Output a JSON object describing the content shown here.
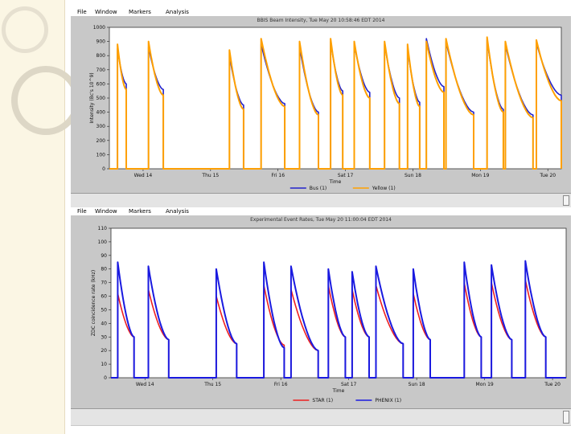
{
  "menu": [
    "File",
    "Window",
    "Markers",
    "Analysis"
  ],
  "chart_data": [
    {
      "type": "line",
      "title": "BBIS Beam Intensity, Tue May 20 10:58:46 EDT 2014",
      "xlabel": "Time",
      "ylabel": "Intensity (Bc's 10^9)",
      "categories": [
        "Wed 14",
        "Thu 15",
        "Fri 16",
        "Sat 17",
        "Sun 18",
        "Mon 19",
        "Tue 20"
      ],
      "xlim": [
        0,
        6.7
      ],
      "ylim": [
        0,
        1000
      ],
      "yticks": [
        0,
        100,
        200,
        300,
        400,
        500,
        600,
        700,
        800,
        900,
        1000
      ],
      "yticklabels": [
        "0",
        "100",
        "200",
        "300",
        "400",
        "500",
        "600",
        "700",
        "800",
        "900",
        "1000"
      ],
      "series": [
        {
          "name": "Bus (1)",
          "color": "#2222cc",
          "fills": [
            [
              0.12,
              0.25,
              850,
              600
            ],
            [
              0.58,
              0.8,
              860,
              560
            ],
            [
              1.78,
              1.99,
              800,
              450
            ],
            [
              2.25,
              2.6,
              880,
              460
            ],
            [
              2.82,
              3.1,
              860,
              400
            ],
            [
              3.28,
              3.46,
              900,
              550
            ],
            [
              3.63,
              3.86,
              880,
              540
            ],
            [
              4.08,
              4.3,
              880,
              500
            ],
            [
              4.42,
              4.6,
              850,
              470
            ],
            [
              4.7,
              4.96,
              920,
              580
            ],
            [
              4.99,
              5.4,
              900,
              400
            ],
            [
              5.6,
              5.84,
              910,
              420
            ],
            [
              5.87,
              6.28,
              880,
              380
            ],
            [
              6.33,
              6.7,
              890,
              520
            ]
          ]
        },
        {
          "name": "Yellow (1)",
          "color": "#ffa000",
          "fills": [
            [
              0.12,
              0.25,
              880,
              560
            ],
            [
              0.58,
              0.8,
              900,
              520
            ],
            [
              1.78,
              1.99,
              840,
              420
            ],
            [
              2.25,
              2.6,
              920,
              440
            ],
            [
              2.82,
              3.1,
              900,
              380
            ],
            [
              3.28,
              3.46,
              920,
              520
            ],
            [
              3.63,
              3.86,
              900,
              500
            ],
            [
              4.08,
              4.3,
              900,
              460
            ],
            [
              4.42,
              4.6,
              880,
              440
            ],
            [
              4.7,
              4.96,
              900,
              540
            ],
            [
              4.99,
              5.4,
              920,
              380
            ],
            [
              5.6,
              5.84,
              930,
              400
            ],
            [
              5.87,
              6.28,
              900,
              360
            ],
            [
              6.33,
              6.7,
              910,
              480
            ]
          ]
        }
      ],
      "legend": "bottom-center",
      "grid": false
    },
    {
      "type": "line",
      "title": "Experimental Event Rates, Tue May 20 11:00:04 EDT 2014",
      "xlabel": "Time",
      "ylabel": "ZDC coincidence rate (kHz)",
      "categories": [
        "Wed 14",
        "Thu 15",
        "Fri 16",
        "Sat 17",
        "Sun 18",
        "Mon 19",
        "Tue 20"
      ],
      "xlim": [
        0,
        6.7
      ],
      "ylim": [
        0,
        110
      ],
      "yticks": [
        0,
        10,
        20,
        30,
        40,
        50,
        60,
        70,
        80,
        90,
        100,
        110
      ],
      "yticklabels": [
        "0",
        "10",
        "20",
        "30",
        "40",
        "50",
        "60",
        "70",
        "80",
        "90",
        "100",
        "110"
      ],
      "series": [
        {
          "name": "STAR (1)",
          "color": "#ee2020",
          "fills": [
            [
              0.1,
              0.34,
              62,
              30
            ],
            [
              0.55,
              0.85,
              65,
              28
            ],
            [
              1.55,
              1.85,
              60,
              25
            ],
            [
              2.25,
              2.55,
              68,
              24
            ],
            [
              2.65,
              3.05,
              65,
              20
            ],
            [
              3.2,
              3.45,
              68,
              30
            ],
            [
              3.55,
              3.8,
              65,
              30
            ],
            [
              3.9,
              4.3,
              68,
              25
            ],
            [
              4.45,
              4.7,
              62,
              28
            ],
            [
              5.2,
              5.45,
              70,
              30
            ],
            [
              5.6,
              5.9,
              70,
              28
            ],
            [
              6.1,
              6.4,
              72,
              30
            ]
          ]
        },
        {
          "name": "PHENIX (1)",
          "color": "#1a1ae0",
          "fills": [
            [
              0.1,
              0.34,
              85,
              30
            ],
            [
              0.55,
              0.85,
              82,
              28
            ],
            [
              1.55,
              1.85,
              80,
              25
            ],
            [
              2.25,
              2.55,
              85,
              22
            ],
            [
              2.65,
              3.05,
              82,
              20
            ],
            [
              3.2,
              3.45,
              80,
              30
            ],
            [
              3.55,
              3.8,
              78,
              30
            ],
            [
              3.9,
              4.3,
              82,
              25
            ],
            [
              4.45,
              4.7,
              80,
              28
            ],
            [
              5.2,
              5.45,
              85,
              30
            ],
            [
              5.6,
              5.9,
              83,
              28
            ],
            [
              6.1,
              6.4,
              86,
              30
            ]
          ]
        }
      ],
      "legend": "bottom-center",
      "grid": false
    }
  ]
}
